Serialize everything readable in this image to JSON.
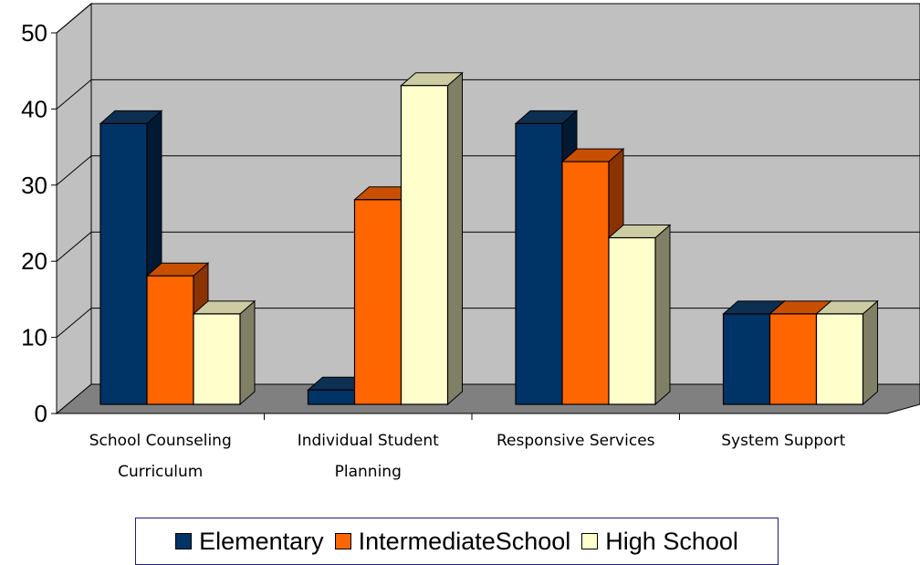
{
  "chart_data": {
    "type": "bar",
    "categories": [
      [
        "School Counseling",
        "Curriculum"
      ],
      [
        "Individual Student",
        "Planning"
      ],
      [
        "Responsive Services"
      ],
      [
        "System Support"
      ]
    ],
    "series": [
      {
        "name": "Elementary",
        "values": [
          40,
          5,
          40,
          15
        ],
        "color": "#003366",
        "side_color": "#001a33",
        "top_color": "#0d2f52"
      },
      {
        "name": "IntermediateSchool",
        "values": [
          20,
          30,
          35,
          15
        ],
        "color": "#ff6600",
        "side_color": "#8b3300",
        "top_color": "#c94f00"
      },
      {
        "name": "High School",
        "values": [
          15,
          45,
          25,
          15
        ],
        "color": "#ffffcc",
        "side_color": "#808066",
        "top_color": "#cccca3"
      }
    ],
    "ylim": [
      0,
      50
    ],
    "yticks": [
      0,
      10,
      20,
      30,
      40,
      50
    ],
    "grid": true,
    "legend_position": "bottom",
    "wall_color": "#c0c0c0",
    "floor_color": "#808080"
  }
}
